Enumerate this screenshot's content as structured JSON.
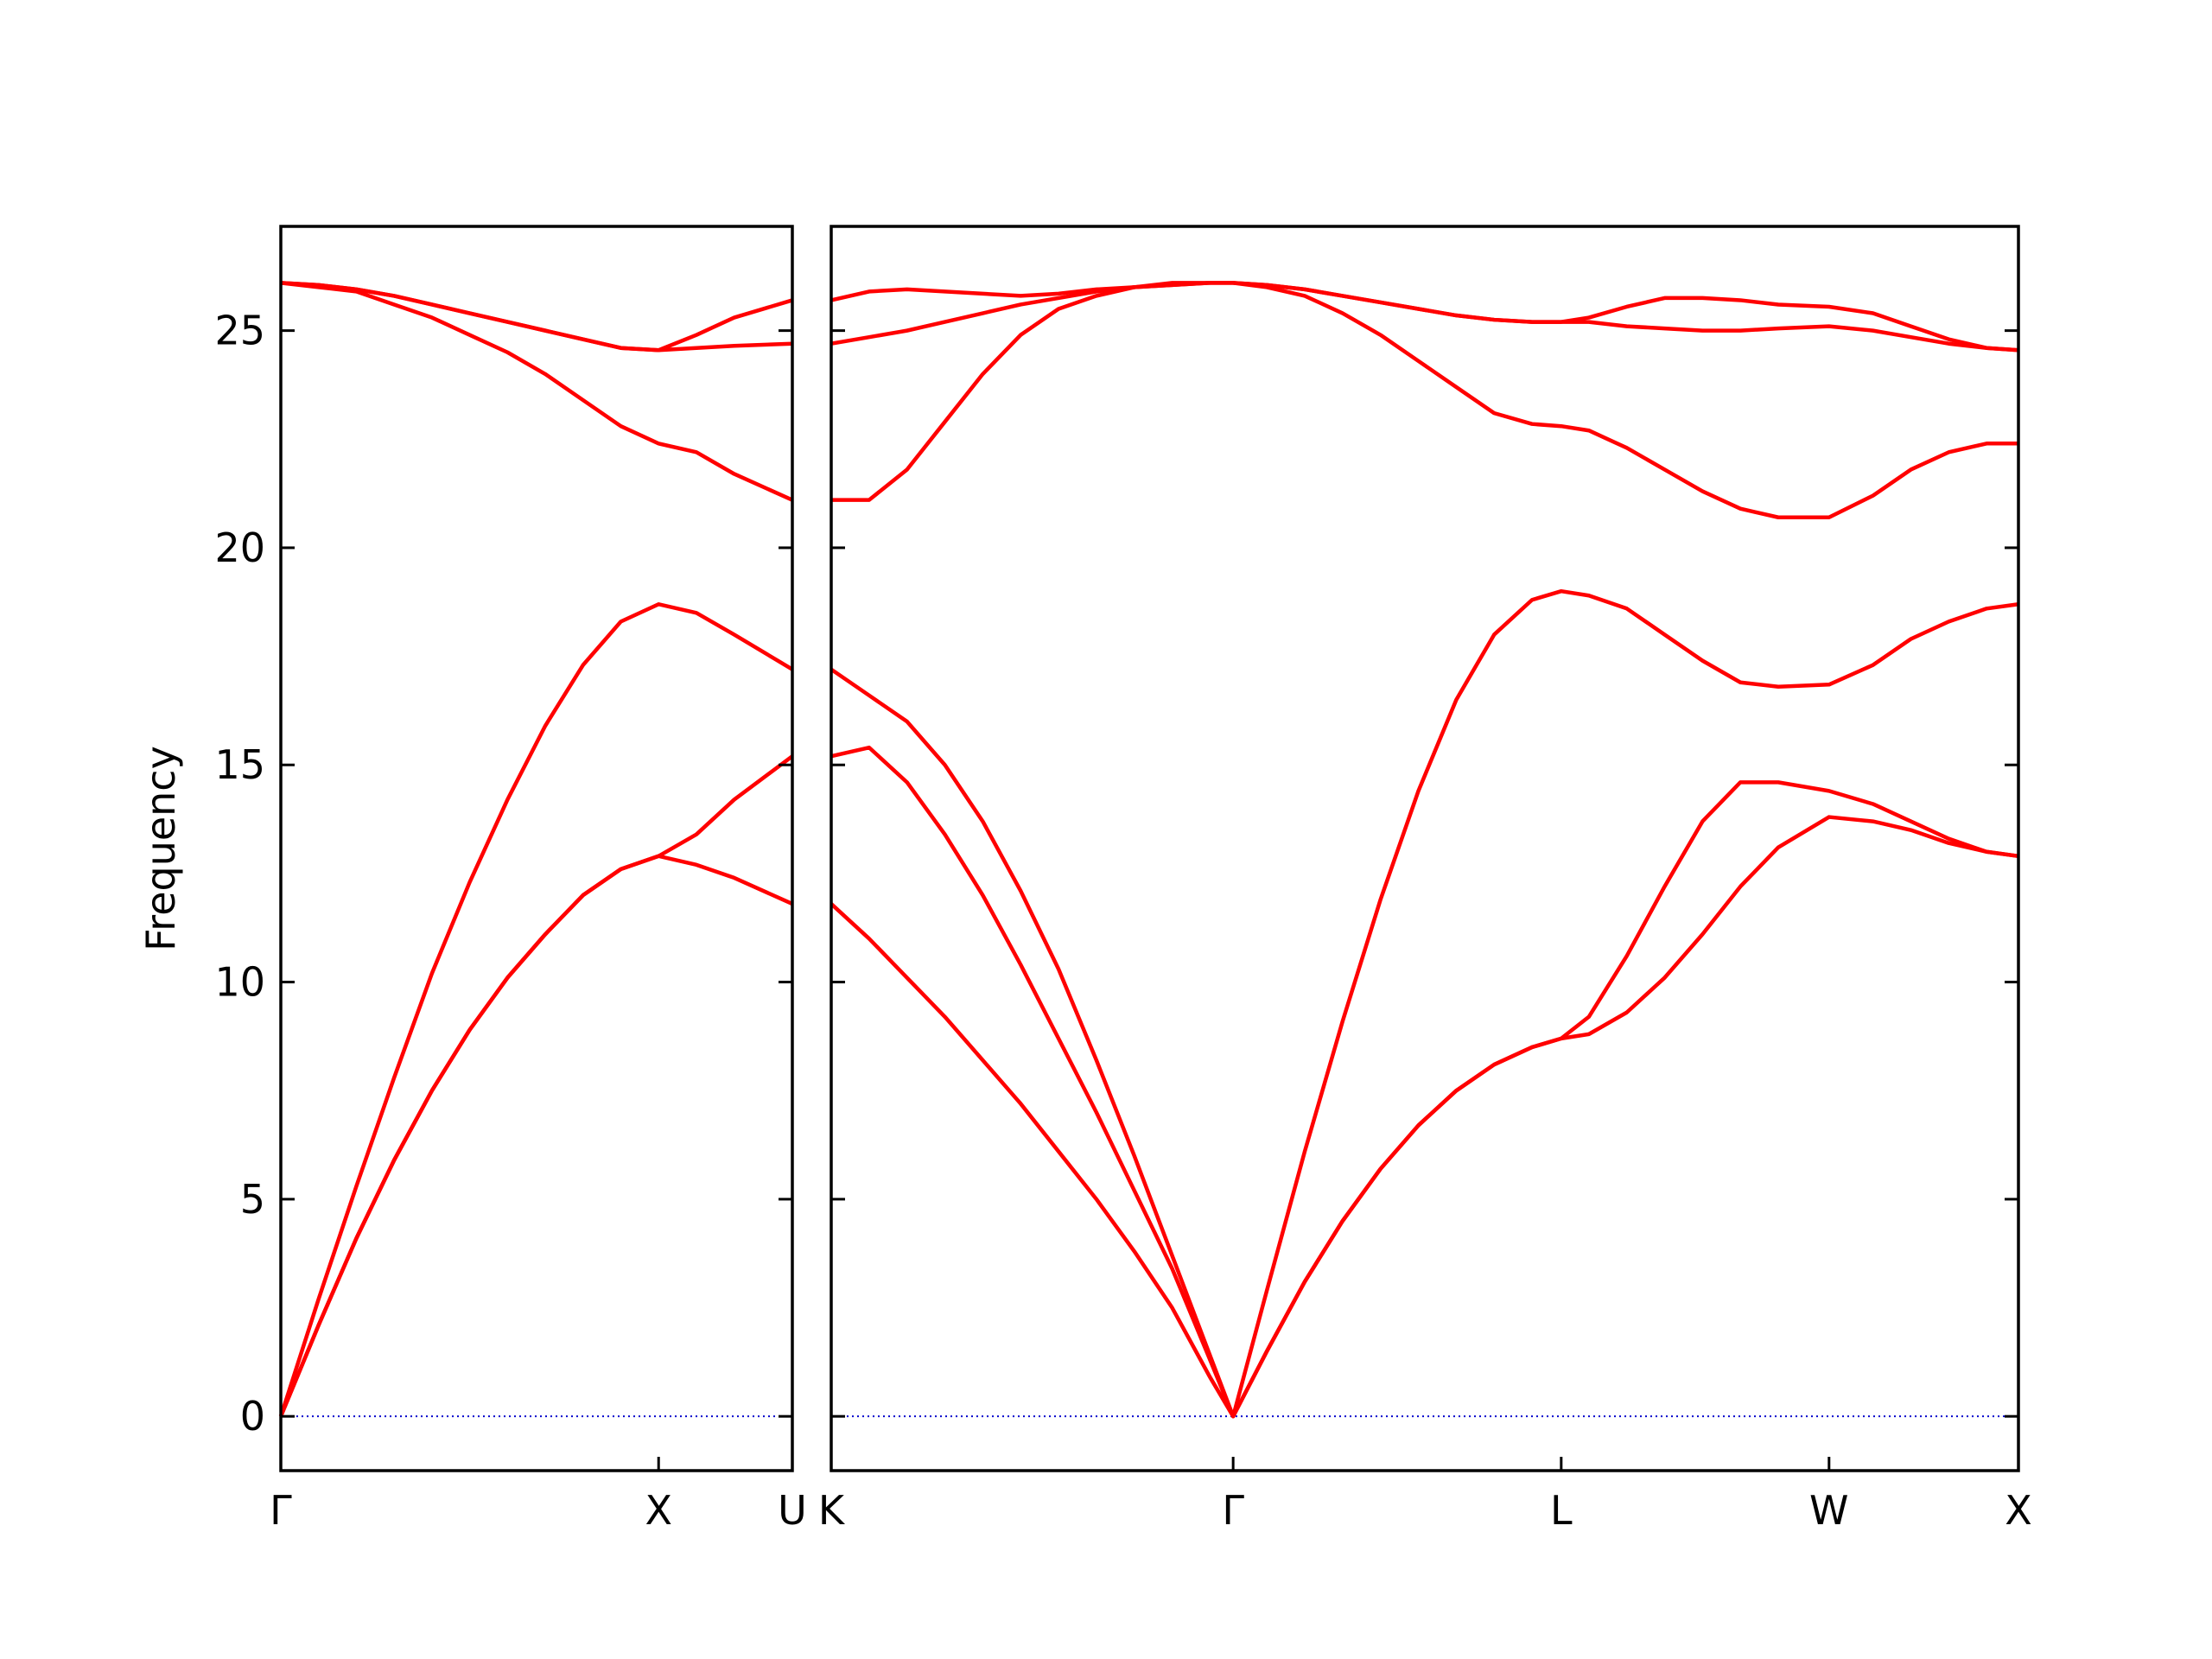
{
  "chart_data": [
    {
      "type": "line",
      "ylabel": "Frequency",
      "x": [
        0,
        0.1,
        0.2,
        0.3,
        0.4,
        0.5,
        0.6,
        0.7,
        0.8,
        0.9,
        1.0,
        1.1,
        1.2,
        1.354
      ],
      "xlim": [
        0,
        1.354
      ],
      "xticks": [
        {
          "value": 0,
          "label": "Γ"
        },
        {
          "value": 1.0,
          "label": "X"
        },
        {
          "value": 1.354,
          "label": "U"
        }
      ],
      "ylim": [
        -1.25,
        27.4
      ],
      "yticks": [
        0,
        5,
        10,
        15,
        20,
        25
      ],
      "ytick_labels": true,
      "hline": 0,
      "hline_color": "#0000cc",
      "series": [
        {
          "color": "#ff0000",
          "values": [
            0,
            2.1,
            4.1,
            5.9,
            7.5,
            8.9,
            10.1,
            11.1,
            12.0,
            12.6,
            12.9,
            12.7,
            12.4,
            11.8
          ]
        },
        {
          "color": "#ff0000",
          "values": [
            0,
            2.1,
            4.1,
            5.9,
            7.5,
            8.9,
            10.1,
            11.1,
            12.0,
            12.6,
            12.9,
            13.4,
            14.2,
            15.2
          ]
        },
        {
          "color": "#ff0000",
          "values": [
            0,
            2.7,
            5.3,
            7.8,
            10.2,
            12.3,
            14.2,
            15.9,
            17.3,
            18.3,
            18.7,
            18.5,
            18.0,
            17.2
          ]
        },
        {
          "color": "#ff0000",
          "values": [
            26.1,
            26.0,
            25.9,
            25.6,
            25.3,
            24.9,
            24.5,
            24.0,
            23.4,
            22.8,
            22.4,
            22.2,
            21.7,
            21.1
          ]
        },
        {
          "color": "#ff0000",
          "values": [
            26.1,
            26.05,
            25.95,
            25.8,
            25.6,
            25.4,
            25.2,
            25.0,
            24.8,
            24.6,
            24.55,
            24.6,
            24.65,
            24.7
          ]
        },
        {
          "color": "#ff0000",
          "values": [
            26.1,
            26.05,
            25.95,
            25.8,
            25.6,
            25.4,
            25.2,
            25.0,
            24.8,
            24.6,
            24.55,
            24.9,
            25.3,
            25.7
          ]
        }
      ]
    },
    {
      "type": "line",
      "x": [
        0,
        0.1,
        0.2,
        0.3,
        0.4,
        0.5,
        0.6,
        0.7,
        0.8,
        0.9,
        1.0,
        1.061,
        1.15,
        1.25,
        1.35,
        1.45,
        1.55,
        1.65,
        1.75,
        1.85,
        1.927,
        2.0,
        2.1,
        2.2,
        2.3,
        2.4,
        2.5,
        2.634,
        2.75,
        2.85,
        2.95,
        3.05,
        3.134
      ],
      "xlim": [
        0,
        3.134
      ],
      "xticks": [
        {
          "value": 0,
          "label": "K"
        },
        {
          "value": 1.061,
          "label": "Γ"
        },
        {
          "value": 1.927,
          "label": "L"
        },
        {
          "value": 2.634,
          "label": "W"
        },
        {
          "value": 3.134,
          "label": "X"
        }
      ],
      "ylim": [
        -1.25,
        27.4
      ],
      "yticks": [
        0,
        5,
        10,
        15,
        20,
        25
      ],
      "ytick_labels": false,
      "hline": 0,
      "hline_color": "#0000cc",
      "series": [
        {
          "color": "#ff0000",
          "values": [
            11.8,
            11.0,
            10.1,
            9.2,
            8.2,
            7.2,
            6.1,
            5.0,
            3.8,
            2.5,
            0.9,
            0,
            1.5,
            3.1,
            4.5,
            5.7,
            6.7,
            7.5,
            8.1,
            8.5,
            8.7,
            8.8,
            9.3,
            10.1,
            11.1,
            12.2,
            13.1,
            13.8,
            13.7,
            13.5,
            13.2,
            13.0,
            12.9
          ]
        },
        {
          "color": "#ff0000",
          "values": [
            15.2,
            15.4,
            14.6,
            13.4,
            12.0,
            10.4,
            8.7,
            7.0,
            5.2,
            3.4,
            1.3,
            0,
            1.5,
            3.1,
            4.5,
            5.7,
            6.7,
            7.5,
            8.1,
            8.5,
            8.7,
            9.2,
            10.6,
            12.2,
            13.7,
            14.6,
            14.6,
            14.4,
            14.1,
            13.7,
            13.3,
            13.0,
            12.9
          ]
        },
        {
          "color": "#ff0000",
          "values": [
            17.2,
            16.6,
            16.0,
            15.0,
            13.7,
            12.1,
            10.3,
            8.2,
            6.0,
            3.7,
            1.4,
            0,
            2.9,
            6.1,
            9.1,
            11.9,
            14.4,
            16.5,
            18.0,
            18.8,
            19.0,
            18.9,
            18.6,
            18.0,
            17.4,
            16.9,
            16.8,
            16.85,
            17.3,
            17.9,
            18.3,
            18.6,
            18.7
          ]
        },
        {
          "color": "#ff0000",
          "values": [
            21.1,
            21.1,
            21.8,
            22.9,
            24.0,
            24.9,
            25.5,
            25.8,
            26.0,
            26.1,
            26.1,
            26.1,
            26.0,
            25.8,
            25.4,
            24.9,
            24.3,
            23.7,
            23.1,
            22.85,
            22.8,
            22.7,
            22.3,
            21.8,
            21.3,
            20.9,
            20.7,
            20.7,
            21.2,
            21.8,
            22.2,
            22.4,
            22.4
          ]
        },
        {
          "color": "#ff0000",
          "values": [
            24.7,
            24.85,
            25.0,
            25.2,
            25.4,
            25.6,
            25.75,
            25.9,
            26.0,
            26.05,
            26.1,
            26.1,
            26.05,
            25.95,
            25.8,
            25.65,
            25.5,
            25.35,
            25.25,
            25.2,
            25.2,
            25.2,
            25.1,
            25.05,
            25.0,
            25.0,
            25.05,
            25.1,
            25.0,
            24.85,
            24.7,
            24.6,
            24.55
          ]
        },
        {
          "color": "#ff0000",
          "values": [
            25.7,
            25.9,
            25.95,
            25.9,
            25.85,
            25.8,
            25.85,
            25.95,
            26.0,
            26.05,
            26.1,
            26.1,
            26.05,
            25.95,
            25.8,
            25.65,
            25.5,
            25.35,
            25.25,
            25.2,
            25.2,
            25.3,
            25.55,
            25.75,
            25.75,
            25.7,
            25.6,
            25.55,
            25.4,
            25.1,
            24.8,
            24.6,
            24.55
          ]
        }
      ]
    }
  ]
}
